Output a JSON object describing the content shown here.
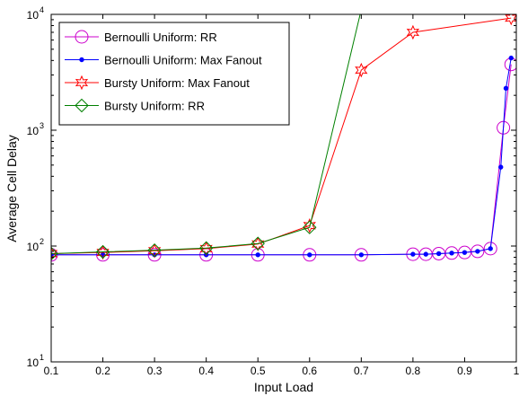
{
  "chart_data": {
    "type": "line",
    "xlabel": "Input Load",
    "ylabel": "Average Cell Delay",
    "xlim": [
      0.1,
      1.0
    ],
    "ylim": [
      10,
      10000
    ],
    "yscale": "log",
    "grid": false,
    "legend_position": "top-left",
    "x_ticks": [
      "0.1",
      "0.2",
      "0.3",
      "0.4",
      "0.5",
      "0.6",
      "0.7",
      "0.8",
      "0.9",
      "1"
    ],
    "y_ticks": [
      {
        "base": "10",
        "exp": "1",
        "value": 10
      },
      {
        "base": "10",
        "exp": "2",
        "value": 100
      },
      {
        "base": "10",
        "exp": "3",
        "value": 1000
      },
      {
        "base": "10",
        "exp": "4",
        "value": 10000
      }
    ],
    "series": [
      {
        "name": "Bernoulli Uniform: RR",
        "color": "#cc00cc",
        "marker": "circle",
        "x": [
          0.1,
          0.2,
          0.3,
          0.4,
          0.5,
          0.6,
          0.7,
          0.8,
          0.825,
          0.85,
          0.875,
          0.9,
          0.925,
          0.95,
          0.975,
          0.99
        ],
        "y": [
          84,
          84,
          84,
          84,
          84,
          84,
          84,
          85,
          85,
          86,
          87,
          88,
          90,
          95,
          1050,
          3700
        ]
      },
      {
        "name": "Bernoulli Uniform: Max Fanout",
        "color": "#0000ff",
        "marker": "dot",
        "x": [
          0.1,
          0.2,
          0.3,
          0.4,
          0.5,
          0.6,
          0.7,
          0.8,
          0.825,
          0.85,
          0.875,
          0.9,
          0.925,
          0.95,
          0.97,
          0.98,
          0.99
        ],
        "y": [
          84,
          84,
          84,
          84,
          84,
          84,
          84,
          85,
          85,
          86,
          87,
          88,
          90,
          95,
          480,
          2300,
          4200
        ]
      },
      {
        "name": "Bursty Uniform: Max Fanout",
        "color": "#ff0000",
        "marker": "star",
        "x": [
          0.1,
          0.2,
          0.3,
          0.4,
          0.5,
          0.6,
          0.7,
          0.8,
          0.99
        ],
        "y": [
          86,
          88,
          91,
          95,
          104,
          150,
          3300,
          7000,
          9300
        ]
      },
      {
        "name": "Bursty Uniform: RR",
        "color": "#008000",
        "marker": "diamond",
        "x": [
          0.1,
          0.2,
          0.3,
          0.4,
          0.5,
          0.6,
          0.7
        ],
        "y": [
          86,
          89,
          92,
          96,
          105,
          145,
          11000
        ]
      }
    ]
  }
}
